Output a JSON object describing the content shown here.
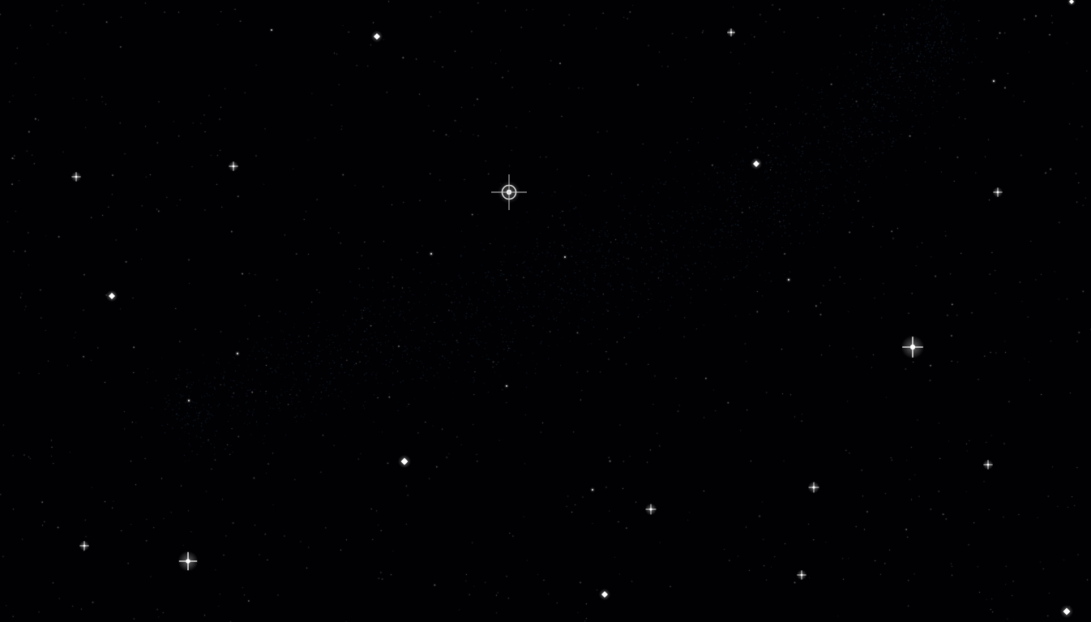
{
  "scene": {
    "background_color": "#010103",
    "star_color": "#ffffff",
    "milky_way_color": "#4d7fb3",
    "dust_count": 900,
    "milky_way_grain_count": 2600
  }
}
